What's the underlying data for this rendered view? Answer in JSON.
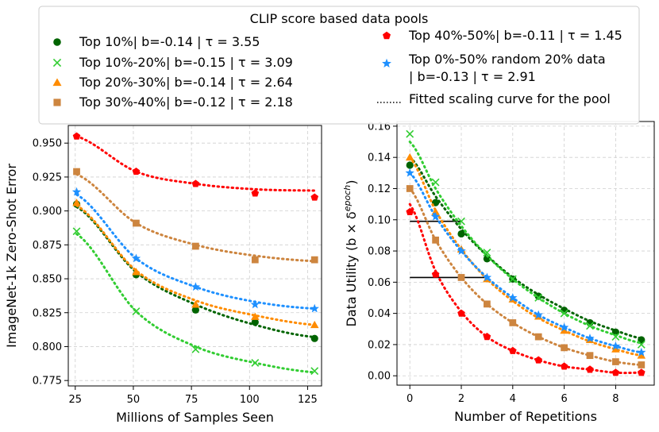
{
  "legend": {
    "title": "CLIP score based data pools",
    "entries": [
      {
        "key": "top10",
        "label": "Top 10%| b=-0.14 | τ = 3.55",
        "color": "#006400",
        "marker": "circle"
      },
      {
        "key": "top10_20",
        "label": "Top 10%-20%| b=-0.15 | τ = 3.09",
        "color": "#32cd32",
        "marker": "x"
      },
      {
        "key": "top20_30",
        "label": "Top 20%-30%| b=-0.14 | τ = 2.64",
        "color": "#ff8c00",
        "marker": "triangle"
      },
      {
        "key": "top30_40",
        "label": "Top 30%-40%| b=-0.12 | τ = 2.18",
        "color": "#cd853f",
        "marker": "square"
      },
      {
        "key": "top40_50",
        "label": "Top 40%-50%| b=-0.11 | τ = 1.45",
        "color": "#ff0000",
        "marker": "pentagon"
      },
      {
        "key": "random",
        "label_lines": [
          "Top 0%-50% random 20% data",
          "| b=-0.13 | τ = 2.91"
        ],
        "color": "#1e90ff",
        "marker": "star"
      },
      {
        "key": "fit",
        "label": "Fitted scaling curve for the pool",
        "color": "#000000",
        "marker": "dotted-line"
      }
    ]
  },
  "chart_data": [
    {
      "type": "line",
      "xlabel": "Millions of Samples Seen",
      "ylabel": "ImageNet-1k Zero-Shot Error",
      "xlim": [
        22,
        131
      ],
      "ylim": [
        0.771,
        0.963
      ],
      "xticks": [
        25,
        50,
        75,
        100,
        125
      ],
      "xtick_labels": [
        "25",
        "50",
        "75",
        "100",
        "125"
      ],
      "yticks": [
        0.775,
        0.8,
        0.825,
        0.85,
        0.875,
        0.9,
        0.925,
        0.95
      ],
      "ytick_labels": [
        "0.775",
        "0.800",
        "0.825",
        "0.850",
        "0.875",
        "0.900",
        "0.925",
        "0.950"
      ],
      "grid": true,
      "x": [
        25.6,
        51.2,
        76.8,
        102.4,
        128
      ],
      "series": [
        {
          "key": "top10",
          "points": [
            0.905,
            0.853,
            0.827,
            0.818,
            0.806
          ],
          "fit": [
            0.903,
            0.855,
            0.831,
            0.816,
            0.807
          ]
        },
        {
          "key": "top10_20",
          "points": [
            0.885,
            0.826,
            0.798,
            0.788,
            0.782
          ],
          "fit": [
            0.883,
            0.826,
            0.8,
            0.788,
            0.781
          ]
        },
        {
          "key": "top20_30",
          "points": [
            0.906,
            0.855,
            0.831,
            0.822,
            0.816
          ],
          "fit": [
            0.904,
            0.856,
            0.834,
            0.823,
            0.816
          ]
        },
        {
          "key": "top30_40",
          "points": [
            0.929,
            0.891,
            0.874,
            0.864,
            0.864
          ],
          "fit": [
            0.927,
            0.891,
            0.875,
            0.867,
            0.863
          ]
        },
        {
          "key": "top40_50",
          "points": [
            0.955,
            0.929,
            0.92,
            0.913,
            0.91
          ],
          "fit": [
            0.955,
            0.929,
            0.92,
            0.916,
            0.915
          ]
        },
        {
          "key": "random",
          "points": [
            0.914,
            0.865,
            0.844,
            0.831,
            0.828
          ],
          "fit": [
            0.912,
            0.865,
            0.844,
            0.833,
            0.828
          ]
        }
      ]
    },
    {
      "type": "line",
      "xlabel": "Number of Repetitions",
      "ylabel": "Data Utility (b × δ^epoch)",
      "ylabel_parts": {
        "main": "Data Utility (b × δ",
        "sup": "epoch",
        "close": ")"
      },
      "xlim": [
        -0.5,
        9.5
      ],
      "ylim": [
        -0.006,
        0.163
      ],
      "xticks": [
        0,
        2,
        4,
        6,
        8
      ],
      "xtick_labels": [
        "0",
        "2",
        "4",
        "6",
        "8"
      ],
      "yticks": [
        0.0,
        0.02,
        0.04,
        0.06,
        0.08,
        0.1,
        0.12,
        0.14,
        0.16
      ],
      "ytick_labels": [
        "0.00",
        "0.02",
        "0.04",
        "0.06",
        "0.08",
        "0.10",
        "0.12",
        "0.14",
        "0.16"
      ],
      "grid": true,
      "x": [
        0,
        1,
        2,
        3,
        4,
        5,
        6,
        7,
        8,
        9
      ],
      "series": [
        {
          "key": "top10",
          "points": [
            0.135,
            0.111,
            0.091,
            0.075,
            0.062,
            0.051,
            0.042,
            0.034,
            0.028,
            0.023
          ],
          "fit": [
            0.14,
            0.115,
            0.094,
            0.077,
            0.063,
            0.052,
            0.043,
            0.035,
            0.029,
            0.024
          ]
        },
        {
          "key": "top10_20",
          "points": [
            0.155,
            0.124,
            0.099,
            0.079,
            0.062,
            0.05,
            0.04,
            0.032,
            0.025,
            0.02
          ],
          "fit": [
            0.15,
            0.12,
            0.096,
            0.077,
            0.062,
            0.05,
            0.04,
            0.032,
            0.026,
            0.021
          ]
        },
        {
          "key": "top20_30",
          "points": [
            0.14,
            0.105,
            0.081,
            0.062,
            0.049,
            0.038,
            0.029,
            0.023,
            0.017,
            0.013
          ],
          "fit": [
            0.14,
            0.106,
            0.081,
            0.062,
            0.048,
            0.037,
            0.029,
            0.022,
            0.017,
            0.013
          ]
        },
        {
          "key": "top30_40",
          "points": [
            0.12,
            0.087,
            0.063,
            0.046,
            0.034,
            0.025,
            0.018,
            0.013,
            0.009,
            0.007
          ],
          "fit": [
            0.12,
            0.087,
            0.063,
            0.046,
            0.034,
            0.025,
            0.018,
            0.013,
            0.009,
            0.007
          ]
        },
        {
          "key": "top40_50",
          "points": [
            0.105,
            0.065,
            0.04,
            0.025,
            0.016,
            0.01,
            0.006,
            0.004,
            0.002,
            0.002
          ],
          "fit": [
            0.11,
            0.067,
            0.041,
            0.025,
            0.016,
            0.01,
            0.006,
            0.004,
            0.002,
            0.002
          ]
        },
        {
          "key": "random",
          "points": [
            0.13,
            0.102,
            0.08,
            0.063,
            0.05,
            0.039,
            0.031,
            0.024,
            0.019,
            0.015
          ],
          "fit": [
            0.13,
            0.102,
            0.08,
            0.063,
            0.05,
            0.039,
            0.031,
            0.024,
            0.019,
            0.015
          ]
        }
      ],
      "hlines": [
        {
          "y": 0.099,
          "x_from": 0,
          "x_to": 2
        },
        {
          "y": 0.063,
          "x_from": 0,
          "x_to": 3
        }
      ]
    }
  ]
}
